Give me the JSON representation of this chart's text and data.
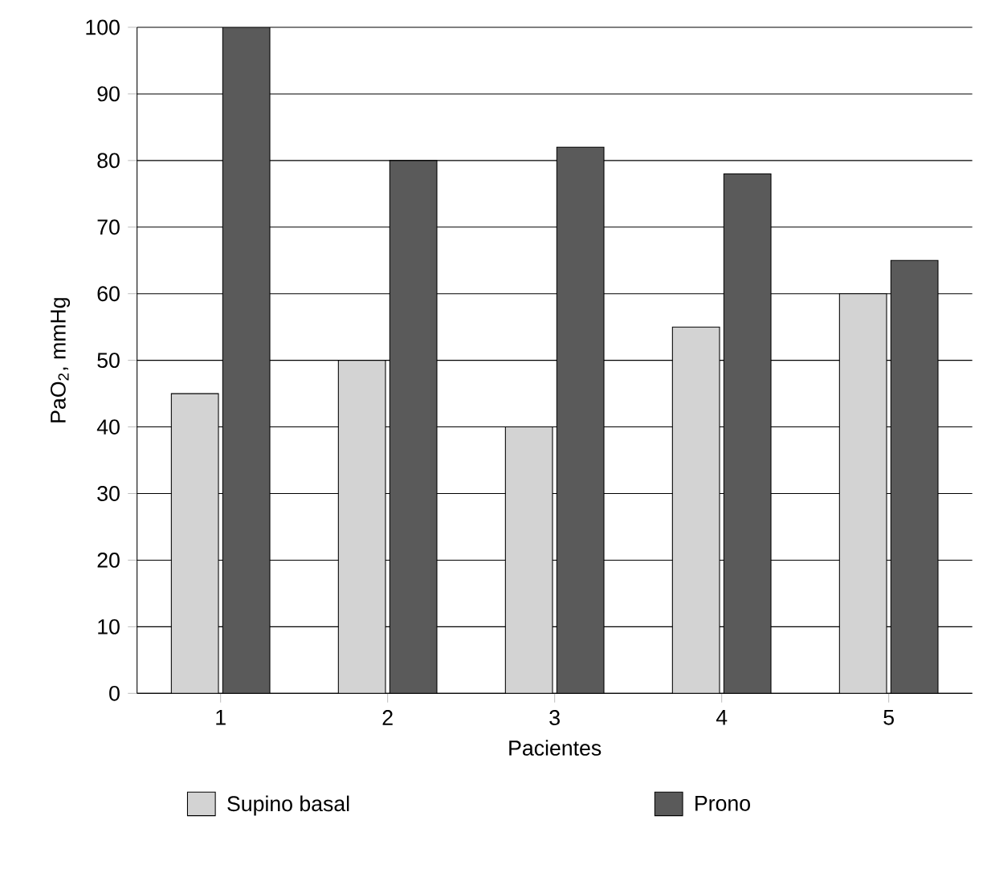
{
  "chart_data": {
    "type": "bar",
    "xlabel": "Pacientes",
    "ylabel": "PaO$_{2}$, mmHg",
    "categories": [
      "1",
      "2",
      "3",
      "4",
      "5"
    ],
    "series": [
      {
        "name": "Supino basal",
        "color": "#d3d3d3",
        "values": [
          45,
          50,
          40,
          55,
          60
        ]
      },
      {
        "name": "Prono",
        "color": "#5a5a5a",
        "values": [
          100,
          80,
          82,
          78,
          65
        ]
      }
    ],
    "ylim": [
      0,
      100
    ],
    "yticks": [
      0,
      10,
      20,
      30,
      40,
      50,
      60,
      70,
      80,
      90,
      100
    ],
    "grid": "y",
    "legend": "bottom"
  }
}
